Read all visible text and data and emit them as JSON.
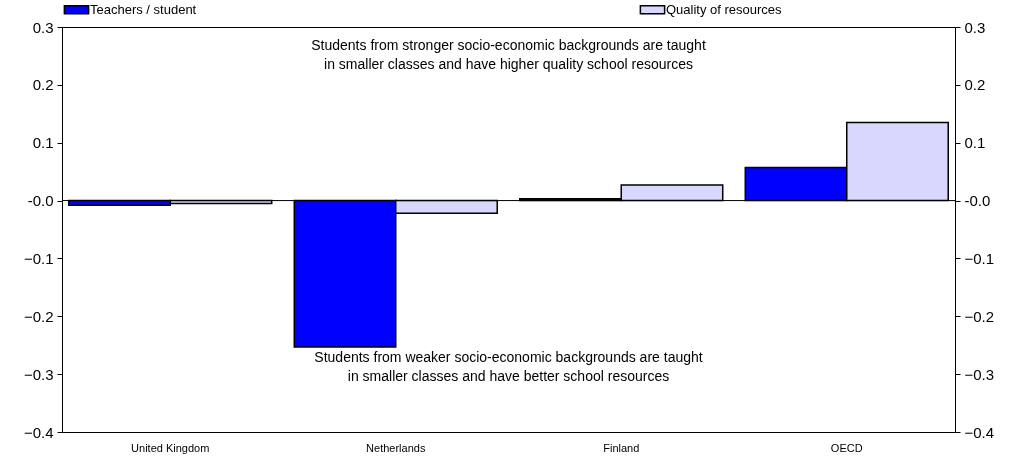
{
  "chart_data": {
    "type": "bar",
    "categories": [
      "United Kingdom",
      "Netherlands",
      "Finland",
      "OECD"
    ],
    "series": [
      {
        "name": "Teachers / student",
        "color": "#0000ff",
        "values": [
          -0.008,
          -0.253,
          0.003,
          0.057
        ]
      },
      {
        "name": "Quality of resources",
        "color": "#d8d8ff",
        "values": [
          -0.005,
          -0.022,
          0.027,
          0.135
        ]
      }
    ],
    "ylim": [
      -0.4,
      0.3
    ],
    "yticks": [
      -0.4,
      -0.3,
      -0.2,
      -0.1,
      {
        "value": 0,
        "label": "-0.0"
      },
      0.1,
      0.2,
      0.3
    ],
    "y2lim": [
      -0.4,
      0.3
    ],
    "y2ticks": [
      -0.4,
      -0.3,
      -0.2,
      -0.1,
      {
        "value": 0,
        "label": "-0.0"
      },
      0.1,
      0.2,
      0.3
    ],
    "ref_lines": [
      {
        "axis": "y",
        "value": 0
      }
    ],
    "annotations": [
      "Students from stronger socio-economic backgrounds are taught\nin smaller classes and have higher quality school resources",
      "Students from weaker socio-economic backgrounds are taught\nin smaller classes and have better school resources"
    ],
    "legend": "top",
    "grid": false
  }
}
